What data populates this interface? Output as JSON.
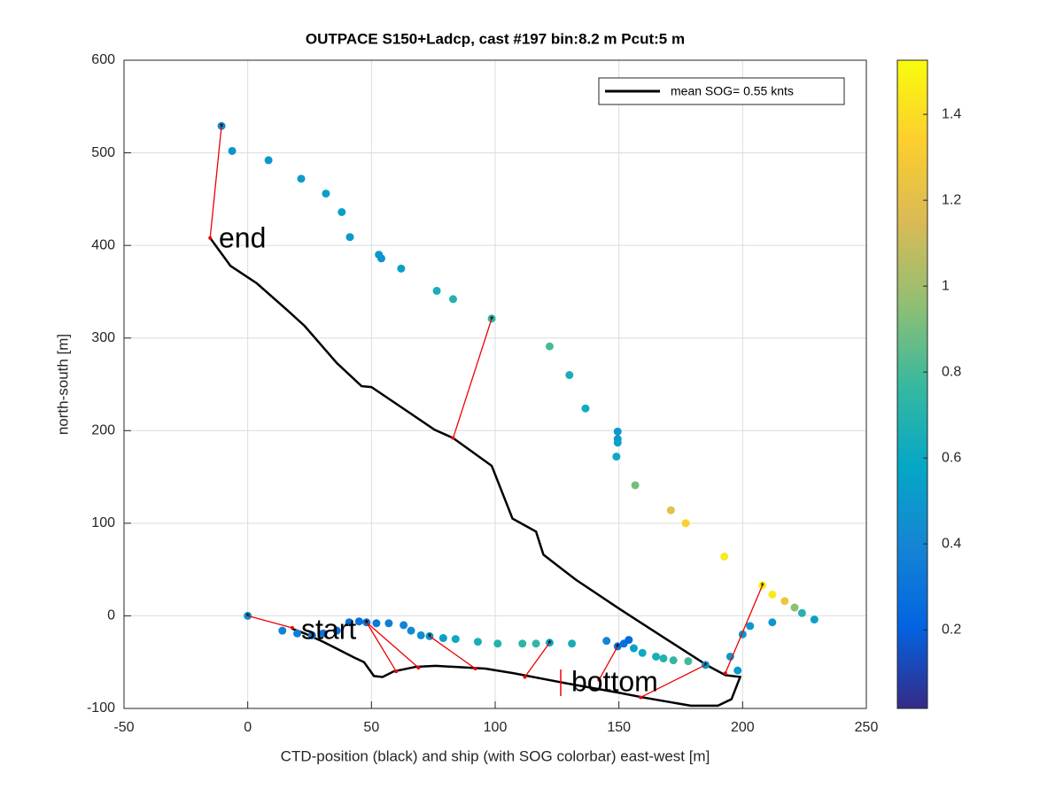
{
  "chart_data": {
    "type": "scatter",
    "title": "OUTPACE S150+Ladcp, cast #197 bin:8.2 m  Pcut:5 m",
    "xlabel": "CTD-position (black) and ship (with SOG colorbar) east-west [m]",
    "ylabel": "north-south [m]",
    "xlim": [
      -50,
      250
    ],
    "xticks": [
      -50,
      0,
      50,
      100,
      150,
      200,
      250
    ],
    "ylim": [
      -100,
      600
    ],
    "yticks": [
      -100,
      0,
      100,
      200,
      300,
      400,
      500,
      600
    ],
    "grid": true,
    "clim": [
      0.017,
      1.526
    ],
    "cticks": [
      0.2,
      0.4,
      0.6,
      0.8,
      1,
      1.2,
      1.4
    ],
    "colormap": [
      "#352a87",
      "#0363e1",
      "#1485d4",
      "#06a7c6",
      "#38b99e",
      "#92bf73",
      "#d9ba56",
      "#fcce2e",
      "#f9fb0e"
    ],
    "ctd": {
      "name": "mean SOG=  0.55 knts",
      "color": "#000000",
      "x": [
        18,
        23,
        30.5,
        43,
        47,
        51,
        54.5,
        59,
        68,
        76,
        96,
        107.5,
        129,
        150,
        159.5,
        179,
        190,
        195.5,
        199,
        193,
        186,
        168.5,
        150.5,
        132.6,
        119.5,
        116.5,
        107,
        98.6,
        83,
        75.5,
        65,
        50,
        46,
        36,
        23,
        16,
        3.7,
        -7,
        -15.2
      ],
      "y": [
        -14,
        -19,
        -28,
        -45,
        -50,
        -65,
        -66,
        -60,
        -55,
        -54,
        -57,
        -62,
        -73,
        -83,
        -88,
        -97,
        -97,
        -90,
        -66,
        -64,
        -54,
        -24,
        7,
        39,
        66,
        91,
        105,
        162,
        192,
        201,
        220,
        247,
        248,
        273,
        313,
        330,
        359,
        378,
        408
      ]
    },
    "ship": {
      "x": [
        -10.6,
        -6.3,
        8.4,
        21.6,
        31.6,
        38,
        41.3,
        53,
        54,
        62,
        76.4,
        83,
        98.6,
        122,
        130,
        136.5,
        149.5,
        149.5,
        149.5,
        149,
        156.6,
        171,
        177,
        192.6,
        208,
        212,
        217,
        221,
        224,
        229,
        212,
        203,
        200,
        195,
        198,
        185,
        0,
        14,
        20,
        26,
        30.5,
        36,
        41,
        45,
        48,
        52,
        57,
        63,
        66,
        70,
        73.5,
        79,
        84,
        93,
        101,
        111,
        116.5,
        122,
        131,
        145,
        149.5,
        152,
        154,
        156,
        159.5,
        165,
        168,
        172,
        178
      ],
      "y": [
        529,
        502,
        492,
        472,
        456,
        436,
        409,
        390,
        386,
        375,
        351,
        342,
        321,
        291,
        260,
        224,
        199,
        191,
        187,
        172,
        141,
        114,
        100,
        64,
        33,
        23,
        16,
        9,
        3,
        -4,
        -7,
        -11,
        -20,
        -44,
        -59,
        -53,
        0,
        -16,
        -19,
        -21,
        -19,
        -16,
        -7,
        -6,
        -7,
        -8,
        -8,
        -10,
        -16,
        -21,
        -22,
        -24,
        -25,
        -28,
        -30,
        -30,
        -30,
        -29,
        -30,
        -27,
        -33,
        -30,
        -26,
        -35,
        -40,
        -44,
        -46,
        -48,
        -49
      ],
      "values": [
        0.42,
        0.48,
        0.5,
        0.52,
        0.55,
        0.55,
        0.5,
        0.5,
        0.48,
        0.55,
        0.65,
        0.7,
        0.75,
        0.8,
        0.65,
        0.62,
        0.5,
        0.5,
        0.55,
        0.6,
        0.9,
        1.2,
        1.35,
        1.45,
        1.5,
        1.45,
        1.25,
        0.95,
        0.7,
        0.55,
        0.5,
        0.5,
        0.5,
        0.5,
        0.5,
        0.5,
        0.45,
        0.38,
        0.35,
        0.32,
        0.3,
        0.28,
        0.25,
        0.28,
        0.3,
        0.32,
        0.35,
        0.38,
        0.42,
        0.45,
        0.5,
        0.55,
        0.6,
        0.65,
        0.7,
        0.72,
        0.75,
        0.6,
        0.65,
        0.4,
        0.3,
        0.28,
        0.25,
        0.55,
        0.6,
        0.65,
        0.7,
        0.75,
        0.8
      ]
    },
    "links": [
      [
        -10.6,
        529,
        -15.2,
        408
      ],
      [
        98.6,
        321,
        83,
        192
      ],
      [
        208,
        33,
        193,
        -62
      ],
      [
        185,
        -53,
        158.8,
        -88
      ],
      [
        149.5,
        -33,
        142,
        -69
      ],
      [
        122,
        -29,
        112,
        -66
      ],
      [
        73.5,
        -22,
        92,
        -57
      ],
      [
        48,
        -7,
        69,
        -56
      ],
      [
        48,
        -7,
        60,
        -60
      ],
      [
        0,
        0,
        18,
        -13
      ]
    ],
    "annotations": [
      "end",
      "start",
      "bottom"
    ]
  }
}
